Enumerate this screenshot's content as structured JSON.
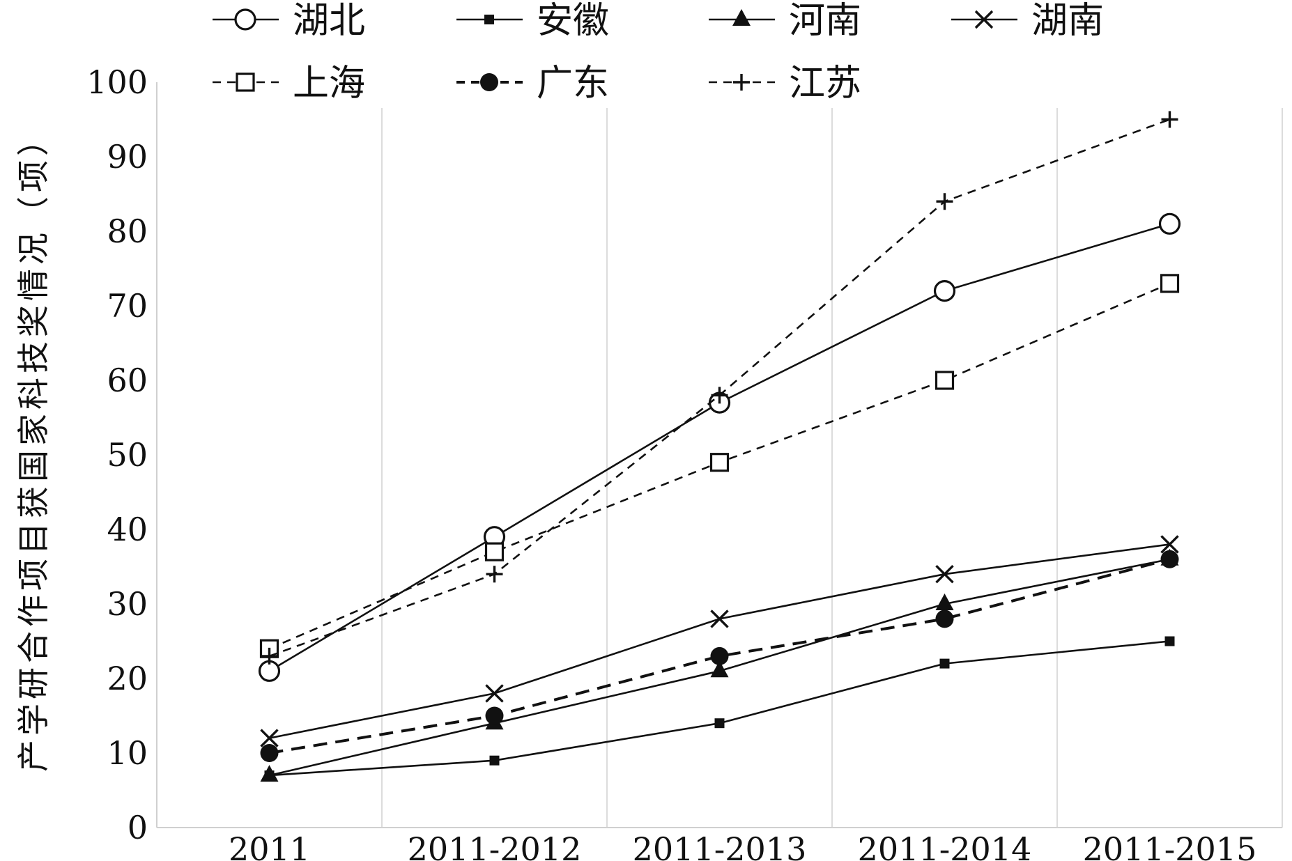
{
  "chart_data": {
    "type": "line",
    "categories": [
      "2011",
      "2011-2012",
      "2011-2013",
      "2011-2014",
      "2011-2015"
    ],
    "ylabel": "产学研合作项目获国家科技奖情况（项）",
    "xlabel": "",
    "ylim": [
      0,
      100
    ],
    "yticks": [
      "0",
      "10",
      "20",
      "30",
      "40",
      "50",
      "60",
      "70",
      "80",
      "90",
      "100"
    ],
    "grid": "vertical",
    "legend_position": "top",
    "series": [
      {
        "name": "湖北",
        "values": [
          21,
          39,
          57,
          72,
          81
        ],
        "marker": "open-circle",
        "dash": "solid"
      },
      {
        "name": "安徽",
        "values": [
          7,
          9,
          14,
          22,
          25
        ],
        "marker": "filled-square",
        "dash": "solid"
      },
      {
        "name": "河南",
        "values": [
          7,
          14,
          21,
          30,
          36
        ],
        "marker": "filled-triangle",
        "dash": "solid"
      },
      {
        "name": "湖南",
        "values": [
          12,
          18,
          28,
          34,
          38
        ],
        "marker": "x",
        "dash": "solid"
      },
      {
        "name": "上海",
        "values": [
          24,
          37,
          49,
          60,
          73
        ],
        "marker": "open-square",
        "dash": "dashed"
      },
      {
        "name": "广东",
        "values": [
          10,
          15,
          23,
          28,
          36
        ],
        "marker": "filled-circle",
        "dash": "dashed-bold"
      },
      {
        "name": "江苏",
        "values": [
          23,
          34,
          58,
          84,
          95
        ],
        "marker": "plus",
        "dash": "dashed"
      }
    ]
  }
}
